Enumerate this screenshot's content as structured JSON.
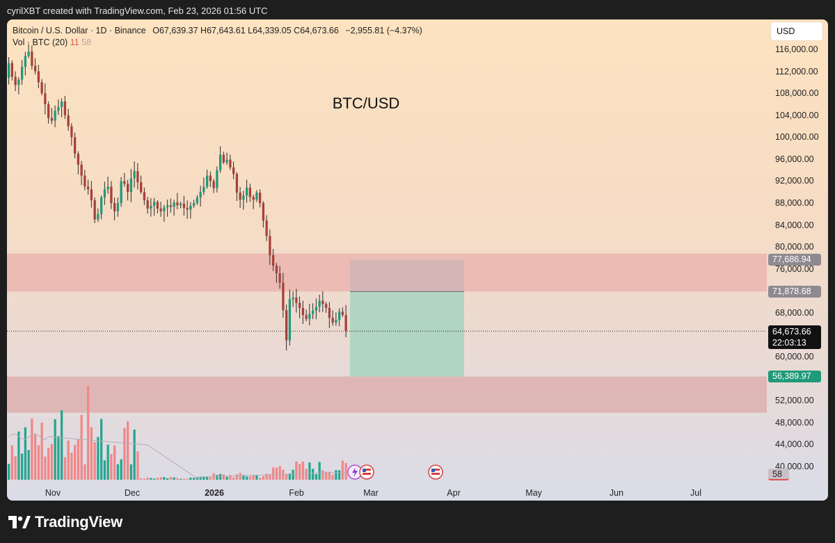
{
  "credit": "cyrilXBT created with TradingView.com, Feb 23, 2026 01:56 UTC",
  "legend": {
    "symbol": "Bitcoin / U.S. Dollar · 1D · Binance",
    "ohlc": "O67,639.37  H67,643.61  L64,339.05  C64,673.66",
    "change": "−2,955.81 (−4.37%)",
    "vol_label": "Vol · BTC (20)",
    "vol_value": "11",
    "vol_ma": "58"
  },
  "currency_button": "USD",
  "chart_title": "BTC/USD",
  "colors": {
    "up": "#22997a",
    "down": "#a8403a",
    "vol_up": "#26a68f",
    "vol_down": "#f08888",
    "zone": "#e8a0a0",
    "target": "#a6d4bf"
  },
  "price_ticks": [
    "116,000.00",
    "112,000.00",
    "108,000.00",
    "104,000.00",
    "100,000.00",
    "96,000.00",
    "92,000.00",
    "88,000.00",
    "84,000.00",
    "80,000.00",
    "76,000.00",
    "68,000.00",
    "60,000.00",
    "52,000.00",
    "48,000.00",
    "44,000.00",
    "40,000.00"
  ],
  "price_badges": {
    "zone_top": "77,686.94",
    "zone_mid": "71,878.68",
    "last_price": "64,673.66",
    "countdown": "22:03:13",
    "target": "56,389.97",
    "vol_ma": "58"
  },
  "time_labels": {
    "nov": "Nov",
    "dec": "Dec",
    "y2026": "2026",
    "feb": "Feb",
    "mar": "Mar",
    "apr": "Apr",
    "may": "May",
    "jun": "Jun",
    "jul": "Jul"
  },
  "footer_logo": "TradingView",
  "chart_data": {
    "type": "candlestick",
    "title": "BTC/USD",
    "ylim": [
      38000,
      118000
    ],
    "zones": [
      {
        "name": "resistance",
        "low": 71878.68,
        "high": 78800
      },
      {
        "name": "support",
        "low": 49800,
        "high": 56389.97
      }
    ],
    "long_position": {
      "entry": 71878.68,
      "stop": 77686.94,
      "target": 56389.97
    },
    "last_price": 64673.66,
    "ohlc_close": [
      113500,
      111000,
      109500,
      110500,
      112800,
      114800,
      115600,
      113000,
      112000,
      110000,
      108000,
      106000,
      103500,
      103000,
      104800,
      105500,
      106500,
      104000,
      102000,
      100000,
      97000,
      95000,
      93000,
      91000,
      90500,
      88500,
      85000,
      86000,
      89000,
      90500,
      91000,
      88000,
      86500,
      88000,
      92000,
      91500,
      90000,
      92500,
      93800,
      91800,
      90000,
      88500,
      87000,
      87500,
      88200,
      87000,
      86500,
      87200,
      87600,
      87300,
      88100,
      87600,
      87900,
      87100,
      86800,
      87500,
      88000,
      89000,
      90000,
      91000,
      93000,
      92000,
      90700,
      94000,
      96800,
      95400,
      95900,
      94500,
      93300,
      89900,
      88600,
      89400,
      90800,
      89100,
      88600,
      89900,
      88000,
      84800,
      82000,
      78500,
      76600,
      75200,
      73500,
      68500,
      63000,
      70500,
      70800,
      69800,
      68900,
      67600,
      66900,
      67800,
      68400,
      69100,
      70200,
      69600,
      68900,
      67100,
      66200,
      66700,
      68200,
      67600,
      64673.66
    ],
    "volume_bars": "daily volume series (values not printed on chart)"
  }
}
